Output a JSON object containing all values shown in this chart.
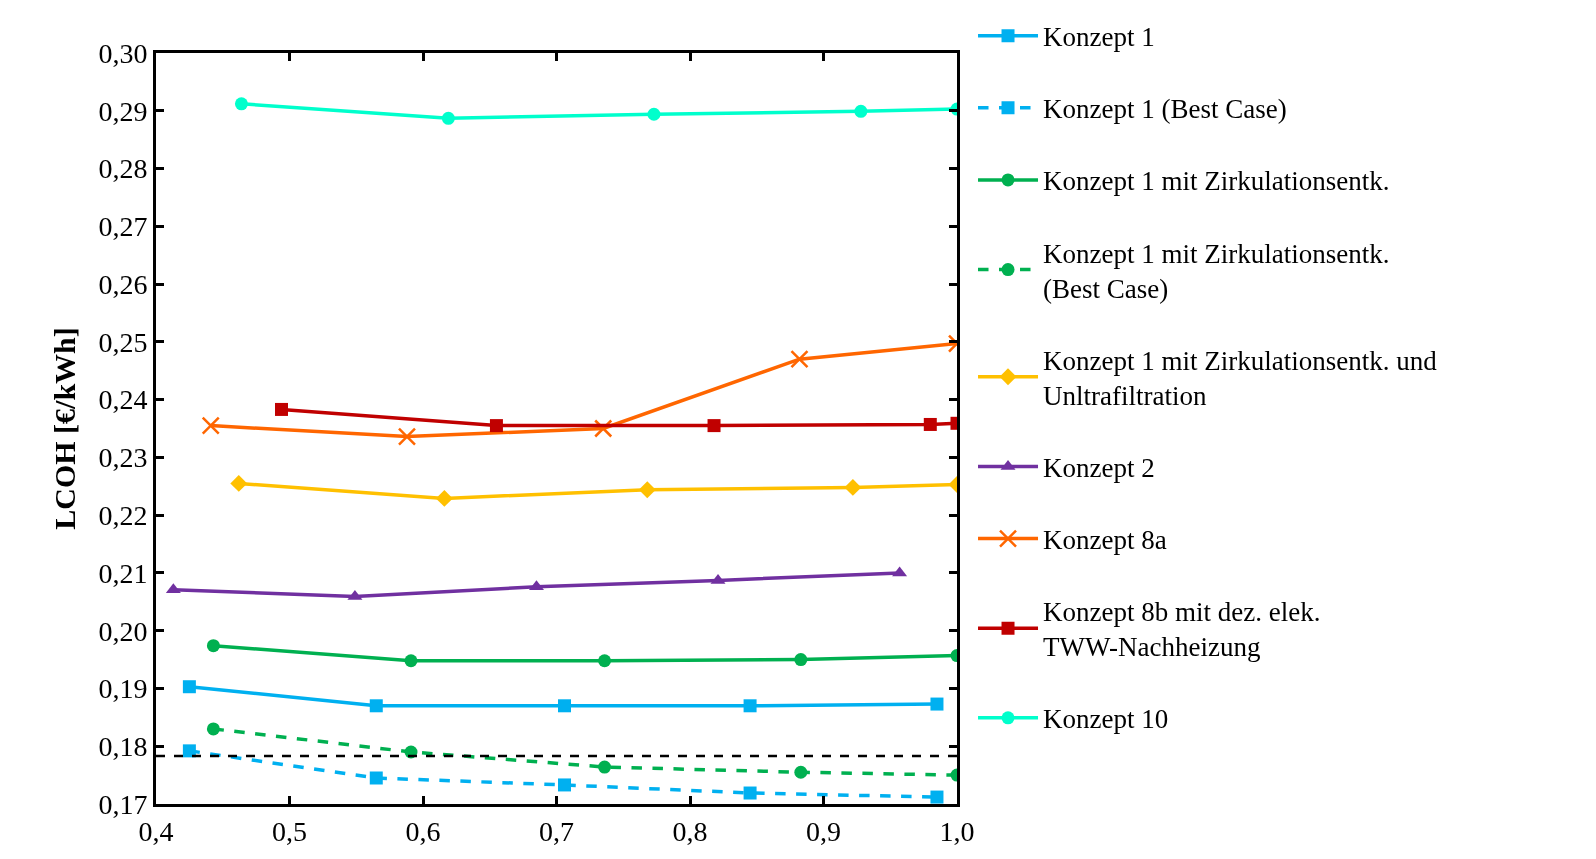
{
  "chart_data": {
    "type": "line",
    "ylabel": "LCOH [€/kWh]",
    "xlim": [
      0.4,
      1.0
    ],
    "ylim": [
      0.17,
      0.3
    ],
    "xticks": [
      {
        "value": 0.4,
        "label": "0,4"
      },
      {
        "value": 0.5,
        "label": "0,5"
      },
      {
        "value": 0.6,
        "label": "0,6"
      },
      {
        "value": 0.7,
        "label": "0,7"
      },
      {
        "value": 0.8,
        "label": "0,8"
      },
      {
        "value": 0.9,
        "label": "0,9"
      },
      {
        "value": 1.0,
        "label": "1,0"
      }
    ],
    "yticks": [
      {
        "value": 0.17,
        "label": "0,17"
      },
      {
        "value": 0.18,
        "label": "0,18"
      },
      {
        "value": 0.19,
        "label": "0,19"
      },
      {
        "value": 0.2,
        "label": "0,20"
      },
      {
        "value": 0.21,
        "label": "0,21"
      },
      {
        "value": 0.22,
        "label": "0,22"
      },
      {
        "value": 0.23,
        "label": "0,23"
      },
      {
        "value": 0.24,
        "label": "0,24"
      },
      {
        "value": 0.25,
        "label": "0,25"
      },
      {
        "value": 0.26,
        "label": "0,26"
      },
      {
        "value": 0.27,
        "label": "0,27"
      },
      {
        "value": 0.28,
        "label": "0,28"
      },
      {
        "value": 0.29,
        "label": "0,29"
      },
      {
        "value": 0.3,
        "label": "0,30"
      }
    ],
    "grid": false,
    "legend": "right",
    "ref_lines": [
      {
        "axis": "y",
        "value": 0.1783,
        "color": "#000000",
        "line_style": "dashed"
      }
    ],
    "series": [
      {
        "name": "Konzept 1",
        "color": "#00b0f0",
        "marker": "square",
        "line_style": "solid",
        "x": [
          0.425,
          0.565,
          0.706,
          0.845,
          0.985
        ],
        "values": [
          0.1903,
          0.187,
          0.187,
          0.187,
          0.1873
        ]
      },
      {
        "name": "Konzept 1 (Best Case)",
        "color": "#00b0f0",
        "marker": "square",
        "line_style": "dashed",
        "x": [
          0.425,
          0.565,
          0.706,
          0.845,
          0.985
        ],
        "values": [
          0.1792,
          0.1745,
          0.1733,
          0.1719,
          0.1712
        ]
      },
      {
        "name": "Konzept 1 mit Zirkulationsentk.",
        "color": "#00b050",
        "marker": "circle",
        "line_style": "solid",
        "x": [
          0.443,
          0.591,
          0.736,
          0.883,
          1.0
        ],
        "values": [
          0.1974,
          0.1948,
          0.1948,
          0.195,
          0.1957
        ]
      },
      {
        "name": "Konzept 1 mit Zirkulationsentk. (Best Case)",
        "color": "#00b050",
        "marker": "circle",
        "line_style": "dashed",
        "x": [
          0.443,
          0.591,
          0.736,
          0.883,
          1.0
        ],
        "values": [
          0.183,
          0.179,
          0.1764,
          0.1755,
          0.175
        ]
      },
      {
        "name": "Konzept 1 mit Zirkulationsentk. und Unltrafiltration",
        "color": "#ffc000",
        "marker": "diamond",
        "line_style": "solid",
        "x": [
          0.462,
          0.616,
          0.768,
          0.922,
          1.0
        ],
        "values": [
          0.2255,
          0.2229,
          0.2244,
          0.2248,
          0.2253
        ]
      },
      {
        "name": "Konzept 2",
        "color": "#7030a0",
        "marker": "triangle",
        "line_style": "solid",
        "x": [
          0.413,
          0.549,
          0.685,
          0.821,
          0.957
        ],
        "values": [
          0.2071,
          0.2059,
          0.2076,
          0.2087,
          0.21
        ]
      },
      {
        "name": "Konzept 8a",
        "color": "#ff6600",
        "marker": "cross",
        "line_style": "solid",
        "x": [
          0.441,
          0.588,
          0.735,
          0.882,
          1.0
        ],
        "values": [
          0.2355,
          0.2336,
          0.235,
          0.247,
          0.2497
        ]
      },
      {
        "name": "Konzept 8b mit dez. elek. TWW-Nachheizung",
        "color": "#c00000",
        "marker": "square",
        "line_style": "solid",
        "x": [
          0.494,
          0.655,
          0.818,
          0.98,
          1.0
        ],
        "values": [
          0.2383,
          0.2355,
          0.2355,
          0.2357,
          0.2359
        ]
      },
      {
        "name": "Konzept 10",
        "color": "#00ffcc",
        "marker": "circle",
        "line_style": "solid",
        "x": [
          0.464,
          0.619,
          0.773,
          0.928,
          1.0
        ],
        "values": [
          0.2912,
          0.2887,
          0.2894,
          0.2899,
          0.2903
        ]
      }
    ]
  }
}
